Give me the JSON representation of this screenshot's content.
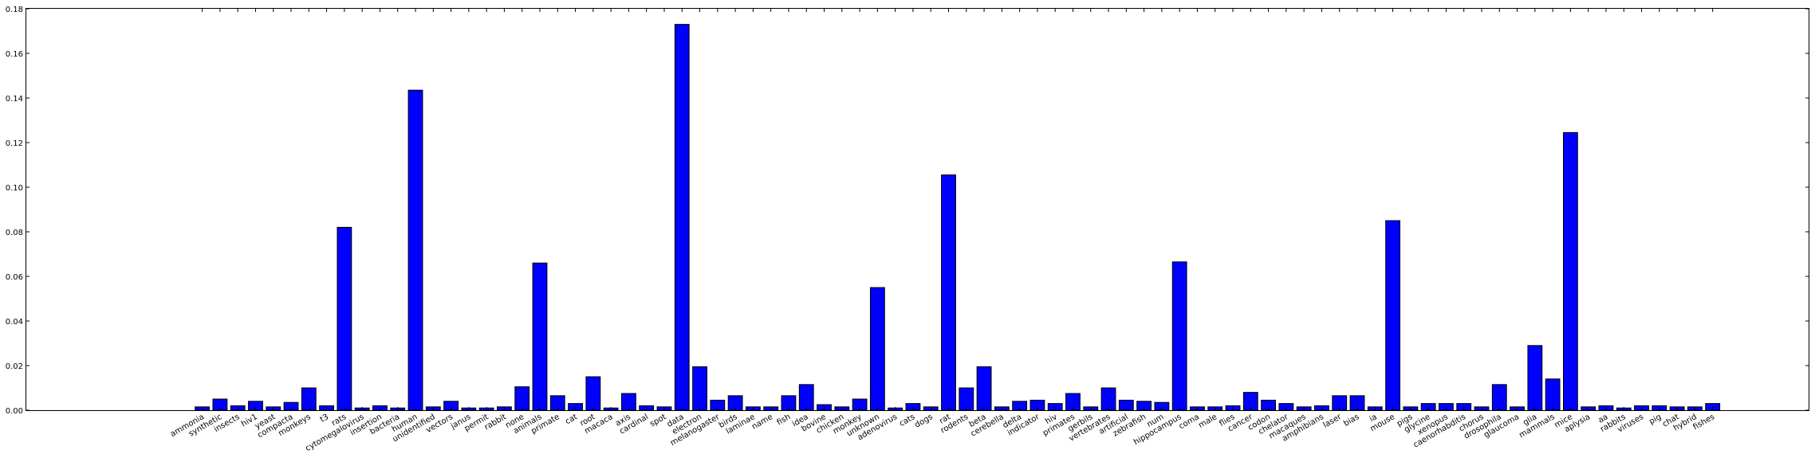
{
  "chart_data": {
    "type": "bar",
    "title": "",
    "xlabel": "",
    "ylabel": "",
    "ylim": [
      0,
      0.18
    ],
    "xlim": [
      -9.5,
      90.8
    ],
    "yticks": [
      "0.00",
      "0.02",
      "0.04",
      "0.06",
      "0.08",
      "0.10",
      "0.12",
      "0.14",
      "0.16",
      "0.18"
    ],
    "grid": false,
    "legend": "none",
    "bar_color": "#0000ff",
    "categories": [
      "ammonia",
      "synthetic",
      "insects",
      "hiv1",
      "yeast",
      "compacta",
      "monkeys",
      "t3",
      "rats",
      "cytomegalovirus",
      "insertion",
      "bacteria",
      "human",
      "unidentified",
      "vectors",
      "janus",
      "permit",
      "rabbit",
      "none",
      "animals",
      "primate",
      "cat",
      "root",
      "macaca",
      "axis",
      "cardinal",
      "spot",
      "data",
      "electron",
      "melanogaster",
      "birds",
      "laminae",
      "name",
      "fish",
      "idea",
      "bovine",
      "chicken",
      "monkey",
      "unknown",
      "adenovirus",
      "cats",
      "dogs",
      "rat",
      "rodents",
      "beta",
      "cerebella",
      "delta",
      "indicator",
      "hiv",
      "primates",
      "gerbils",
      "vertebrates",
      "artificial",
      "zebrafish",
      "num",
      "hippocampus",
      "coma",
      "male",
      "flies",
      "cancer",
      "codon",
      "chelator",
      "macaques",
      "amphibians",
      "laser",
      "bias",
      "ia",
      "mouse",
      "pigs",
      "glycine",
      "xenopus",
      "caenorhabditis",
      "chorus",
      "drosophila",
      "glaucoma",
      "glia",
      "mammals",
      "mice",
      "aplysia",
      "aa",
      "rabbits",
      "viruses",
      "pig",
      "chat",
      "hybrid",
      "fishes"
    ],
    "values": [
      0.0015,
      0.005,
      0.002,
      0.004,
      0.0015,
      0.0035,
      0.01,
      0.002,
      0.082,
      0.001,
      0.002,
      0.001,
      0.1435,
      0.0015,
      0.004,
      0.001,
      0.001,
      0.0015,
      0.0105,
      0.066,
      0.0065,
      0.003,
      0.015,
      0.001,
      0.0075,
      0.002,
      0.0015,
      0.173,
      0.0195,
      0.0045,
      0.0065,
      0.0015,
      0.0015,
      0.0065,
      0.0115,
      0.0025,
      0.0015,
      0.005,
      0.055,
      0.001,
      0.003,
      0.0015,
      0.1055,
      0.01,
      0.0195,
      0.0015,
      0.004,
      0.0045,
      0.003,
      0.0075,
      0.0015,
      0.01,
      0.0045,
      0.004,
      0.0035,
      0.0665,
      0.0015,
      0.0015,
      0.002,
      0.008,
      0.0045,
      0.003,
      0.0015,
      0.002,
      0.0065,
      0.0065,
      0.0015,
      0.085,
      0.0015,
      0.003,
      0.003,
      0.003,
      0.0015,
      0.0115,
      0.0015,
      0.029,
      0.014,
      0.1245,
      0.0015,
      0.002,
      0.001,
      0.002,
      0.002,
      0.0015,
      0.0015,
      0.003
    ]
  }
}
